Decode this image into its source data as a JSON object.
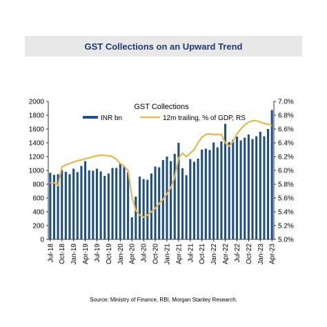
{
  "banner": {
    "title": "GST Collections on an Upward Trend"
  },
  "source": "Source: Ministry of Finance, RBI, Morgan Stanley Research.",
  "colors": {
    "bar": "#1f4e8c",
    "line": "#e6b84a",
    "banner_bg": "#e8e8e8",
    "banner_text": "#1f3a7a"
  },
  "chart_data": {
    "type": "bar",
    "title": "GST Collections",
    "legend": [
      "INR bn",
      "12m trailing, % of GDP, RS"
    ],
    "legend_position": "top",
    "y_left": {
      "ticks": [
        "0",
        "200",
        "400",
        "600",
        "800",
        "1000",
        "1200",
        "1400",
        "1600",
        "1800",
        "2000"
      ],
      "range": [
        0,
        2000
      ]
    },
    "y_right": {
      "ticks": [
        "5.0%",
        "5.2%",
        "5.4%",
        "5.6%",
        "5.8%",
        "6.0%",
        "6.2%",
        "6.4%",
        "6.6%",
        "6.8%",
        "7.0%"
      ],
      "range": [
        5.0,
        7.0
      ]
    },
    "x_tick_labels": [
      "Jul-18",
      "Oct-18",
      "Jan-19",
      "Apr-19",
      "Jul-19",
      "Oct-19",
      "Jan-20",
      "Apr-20",
      "Jul-20",
      "Oct-20",
      "Jan-21",
      "Apr-21",
      "Jul-21",
      "Oct-21",
      "Jan-22",
      "Apr-22",
      "Jul-22",
      "Oct-22",
      "Jan-23",
      "Apr-23"
    ],
    "categories": [
      "Jul-18",
      "Aug-18",
      "Sep-18",
      "Oct-18",
      "Nov-18",
      "Dec-18",
      "Jan-19",
      "Feb-19",
      "Mar-19",
      "Apr-19",
      "May-19",
      "Jun-19",
      "Jul-19",
      "Aug-19",
      "Sep-19",
      "Oct-19",
      "Nov-19",
      "Dec-19",
      "Jan-20",
      "Feb-20",
      "Mar-20",
      "Apr-20",
      "May-20",
      "Jun-20",
      "Jul-20",
      "Aug-20",
      "Sep-20",
      "Oct-20",
      "Nov-20",
      "Dec-20",
      "Jan-21",
      "Feb-21",
      "Mar-21",
      "Apr-21",
      "May-21",
      "Jun-21",
      "Jul-21",
      "Aug-21",
      "Sep-21",
      "Oct-21",
      "Nov-21",
      "Dec-21",
      "Jan-22",
      "Feb-22",
      "Mar-22",
      "Apr-22",
      "May-22",
      "Jun-22",
      "Jul-22",
      "Aug-22",
      "Sep-22",
      "Oct-22",
      "Nov-22",
      "Dec-22",
      "Jan-23",
      "Feb-23",
      "Mar-23",
      "Apr-23"
    ],
    "series": [
      {
        "name": "INR bn",
        "type": "bar",
        "values": [
          965,
          935,
          945,
          1005,
          980,
          945,
          1025,
          975,
          1065,
          1135,
          1000,
          995,
          1025,
          985,
          920,
          955,
          1035,
          1035,
          1100,
          1055,
          975,
          320,
          620,
          910,
          875,
          865,
          955,
          1055,
          1045,
          1150,
          1200,
          1135,
          1240,
          1400,
          1030,
          930,
          1165,
          1125,
          1170,
          1300,
          1315,
          1295,
          1405,
          1335,
          1420,
          1675,
          1410,
          1445,
          1490,
          1435,
          1475,
          1520,
          1455,
          1495,
          1560,
          1495,
          1600,
          1875
        ]
      },
      {
        "name": "12m trailing, % of GDP, RS",
        "type": "line",
        "values": [
          5.82,
          5.82,
          5.78,
          6.05,
          6.08,
          6.1,
          6.12,
          6.14,
          6.15,
          6.17,
          6.18,
          6.2,
          6.21,
          6.22,
          6.22,
          6.21,
          6.2,
          6.16,
          6.1,
          6.06,
          6.0,
          5.62,
          5.42,
          5.35,
          5.32,
          5.35,
          5.4,
          5.45,
          5.52,
          5.58,
          5.66,
          5.75,
          5.9,
          6.18,
          6.25,
          6.2,
          6.25,
          6.3,
          6.4,
          6.48,
          6.52,
          6.53,
          6.52,
          6.52,
          6.52,
          6.4,
          6.35,
          6.42,
          6.53,
          6.6,
          6.66,
          6.7,
          6.72,
          6.72,
          6.7,
          6.68,
          6.67,
          6.65
        ]
      }
    ]
  }
}
